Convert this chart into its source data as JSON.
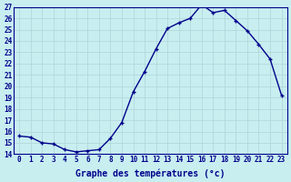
{
  "hours": [
    0,
    1,
    2,
    3,
    4,
    5,
    6,
    7,
    8,
    9,
    10,
    11,
    12,
    13,
    14,
    15,
    16,
    17,
    18,
    19,
    20,
    21,
    22,
    23
  ],
  "temps": [
    15.6,
    15.5,
    15.0,
    14.9,
    14.4,
    14.2,
    14.3,
    14.4,
    15.4,
    16.8,
    19.5,
    21.3,
    23.3,
    25.1,
    25.6,
    26.0,
    27.2,
    26.5,
    26.7,
    25.8,
    24.9,
    23.7,
    22.4,
    19.2
  ],
  "xlabel": "Graphe des températures (°c)",
  "background_color": "#c8eef0",
  "line_color": "#00008b",
  "grid_color": "#b0d4d8",
  "ylim": [
    14,
    27
  ],
  "xlim_min": -0.5,
  "xlim_max": 23.5,
  "yticks": [
    14,
    15,
    16,
    17,
    18,
    19,
    20,
    21,
    22,
    23,
    24,
    25,
    26,
    27
  ],
  "xticks": [
    0,
    1,
    2,
    3,
    4,
    5,
    6,
    7,
    8,
    9,
    10,
    11,
    12,
    13,
    14,
    15,
    16,
    17,
    18,
    19,
    20,
    21,
    22,
    23
  ],
  "xtick_labels": [
    "0",
    "1",
    "2",
    "3",
    "4",
    "5",
    "6",
    "7",
    "8",
    "9",
    "10",
    "11",
    "12",
    "13",
    "14",
    "15",
    "16",
    "17",
    "18",
    "19",
    "20",
    "21",
    "22",
    "23"
  ],
  "marker_size": 3.5,
  "line_width": 1.0,
  "tick_fontsize": 5.5,
  "xlabel_fontsize": 7.0
}
